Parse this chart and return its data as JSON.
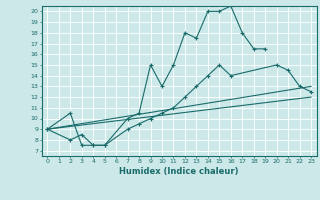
{
  "xlabel": "Humidex (Indice chaleur)",
  "bg_color": "#cce8e8",
  "grid_color": "#ffffff",
  "line_color": "#1a6b6b",
  "xlim": [
    -0.5,
    23.5
  ],
  "ylim": [
    6.5,
    20.5
  ],
  "xticks": [
    0,
    1,
    2,
    3,
    4,
    5,
    6,
    7,
    8,
    9,
    10,
    11,
    12,
    13,
    14,
    15,
    16,
    17,
    18,
    19,
    20,
    21,
    22,
    23
  ],
  "yticks": [
    7,
    8,
    9,
    10,
    11,
    12,
    13,
    14,
    15,
    16,
    17,
    18,
    19,
    20
  ],
  "line1_x": [
    0,
    2,
    3,
    4,
    5,
    7,
    8,
    9,
    10,
    11,
    12,
    13,
    14,
    15,
    16,
    17,
    18,
    19
  ],
  "line1_y": [
    9,
    10.5,
    7.5,
    7.5,
    7.5,
    10,
    10.5,
    15,
    13,
    15,
    18,
    17.5,
    20,
    20,
    20.5,
    18,
    16.5,
    16.5
  ],
  "line2_x": [
    0,
    2,
    3,
    4,
    5,
    7,
    8,
    9,
    10,
    11,
    12,
    13,
    14,
    15,
    16,
    20,
    21,
    22,
    23
  ],
  "line2_y": [
    9,
    8,
    8.5,
    7.5,
    7.5,
    9,
    9.5,
    10,
    10.5,
    11,
    12,
    13,
    14,
    15,
    14,
    15,
    14.5,
    13,
    12.5
  ],
  "line3_x": [
    0,
    23
  ],
  "line3_y": [
    9,
    12
  ],
  "line4_x": [
    0,
    23
  ],
  "line4_y": [
    9,
    13
  ]
}
